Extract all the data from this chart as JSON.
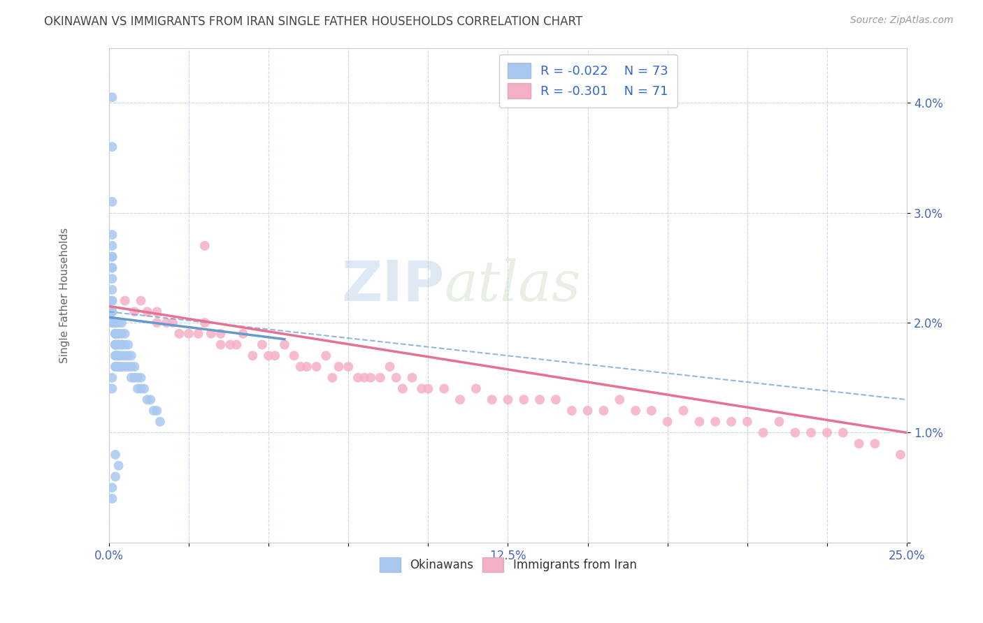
{
  "title": "OKINAWAN VS IMMIGRANTS FROM IRAN SINGLE FATHER HOUSEHOLDS CORRELATION CHART",
  "source": "Source: ZipAtlas.com",
  "ylabel": "Single Father Households",
  "xlim": [
    0.0,
    0.25
  ],
  "ylim": [
    0.0,
    0.045
  ],
  "xticks": [
    0.0,
    0.025,
    0.05,
    0.075,
    0.1,
    0.125,
    0.15,
    0.175,
    0.2,
    0.225,
    0.25
  ],
  "xtick_labels": [
    "0.0%",
    "",
    "",
    "",
    "",
    "12.5%",
    "",
    "",
    "",
    "",
    "25.0%"
  ],
  "yticks": [
    0.0,
    0.01,
    0.02,
    0.03,
    0.04
  ],
  "ytick_labels": [
    "",
    "1.0%",
    "2.0%",
    "3.0%",
    "4.0%"
  ],
  "color_blue": "#a8c8f0",
  "color_pink": "#f5b0c5",
  "color_blue_line": "#6699cc",
  "color_pink_line": "#e87090",
  "watermark": "ZIPatlas",
  "background_color": "#ffffff",
  "grid_color": "#c8d8ec",
  "okinawan_x": [
    0.001,
    0.001,
    0.001,
    0.001,
    0.001,
    0.001,
    0.001,
    0.001,
    0.001,
    0.001,
    0.001,
    0.001,
    0.001,
    0.001,
    0.001,
    0.001,
    0.001,
    0.002,
    0.002,
    0.002,
    0.002,
    0.002,
    0.002,
    0.002,
    0.002,
    0.002,
    0.002,
    0.002,
    0.002,
    0.003,
    0.003,
    0.003,
    0.003,
    0.003,
    0.003,
    0.003,
    0.003,
    0.003,
    0.004,
    0.004,
    0.004,
    0.004,
    0.004,
    0.004,
    0.005,
    0.005,
    0.005,
    0.005,
    0.006,
    0.006,
    0.006,
    0.007,
    0.007,
    0.007,
    0.008,
    0.008,
    0.009,
    0.009,
    0.01,
    0.01,
    0.011,
    0.012,
    0.013,
    0.014,
    0.015,
    0.016,
    0.001,
    0.001,
    0.002,
    0.003,
    0.002,
    0.001,
    0.001
  ],
  "okinawan_y": [
    0.0405,
    0.036,
    0.031,
    0.028,
    0.027,
    0.026,
    0.026,
    0.025,
    0.025,
    0.024,
    0.023,
    0.022,
    0.022,
    0.021,
    0.021,
    0.02,
    0.02,
    0.02,
    0.02,
    0.019,
    0.019,
    0.019,
    0.018,
    0.018,
    0.018,
    0.017,
    0.017,
    0.016,
    0.016,
    0.02,
    0.019,
    0.019,
    0.018,
    0.018,
    0.017,
    0.017,
    0.016,
    0.016,
    0.02,
    0.019,
    0.018,
    0.018,
    0.017,
    0.016,
    0.019,
    0.018,
    0.017,
    0.016,
    0.018,
    0.017,
    0.016,
    0.017,
    0.016,
    0.015,
    0.016,
    0.015,
    0.015,
    0.014,
    0.015,
    0.014,
    0.014,
    0.013,
    0.013,
    0.012,
    0.012,
    0.011,
    0.015,
    0.014,
    0.008,
    0.007,
    0.006,
    0.005,
    0.004
  ],
  "iran_x": [
    0.005,
    0.008,
    0.01,
    0.012,
    0.015,
    0.015,
    0.018,
    0.02,
    0.022,
    0.025,
    0.028,
    0.03,
    0.032,
    0.035,
    0.035,
    0.038,
    0.04,
    0.042,
    0.045,
    0.048,
    0.05,
    0.052,
    0.055,
    0.058,
    0.06,
    0.062,
    0.065,
    0.068,
    0.07,
    0.072,
    0.075,
    0.078,
    0.08,
    0.082,
    0.085,
    0.088,
    0.09,
    0.092,
    0.095,
    0.098,
    0.1,
    0.105,
    0.11,
    0.115,
    0.12,
    0.125,
    0.13,
    0.135,
    0.14,
    0.145,
    0.15,
    0.155,
    0.16,
    0.165,
    0.17,
    0.175,
    0.18,
    0.185,
    0.19,
    0.195,
    0.2,
    0.205,
    0.21,
    0.215,
    0.22,
    0.225,
    0.23,
    0.235,
    0.24,
    0.248,
    0.03
  ],
  "iran_y": [
    0.022,
    0.021,
    0.022,
    0.021,
    0.021,
    0.02,
    0.02,
    0.02,
    0.019,
    0.019,
    0.019,
    0.02,
    0.019,
    0.019,
    0.018,
    0.018,
    0.018,
    0.019,
    0.017,
    0.018,
    0.017,
    0.017,
    0.018,
    0.017,
    0.016,
    0.016,
    0.016,
    0.017,
    0.015,
    0.016,
    0.016,
    0.015,
    0.015,
    0.015,
    0.015,
    0.016,
    0.015,
    0.014,
    0.015,
    0.014,
    0.014,
    0.014,
    0.013,
    0.014,
    0.013,
    0.013,
    0.013,
    0.013,
    0.013,
    0.012,
    0.012,
    0.012,
    0.013,
    0.012,
    0.012,
    0.011,
    0.012,
    0.011,
    0.011,
    0.011,
    0.011,
    0.01,
    0.011,
    0.01,
    0.01,
    0.01,
    0.01,
    0.009,
    0.009,
    0.008,
    0.027
  ],
  "ok_line_x0": 0.0,
  "ok_line_x1": 0.055,
  "ok_line_y0": 0.0205,
  "ok_line_y1": 0.0185,
  "iran_line_x0": 0.0,
  "iran_line_x1": 0.25,
  "iran_line_y0": 0.0215,
  "iran_line_y1": 0.01,
  "dashed_line_x0": 0.0,
  "dashed_line_x1": 0.25,
  "dashed_line_y0": 0.021,
  "dashed_line_y1": 0.013
}
